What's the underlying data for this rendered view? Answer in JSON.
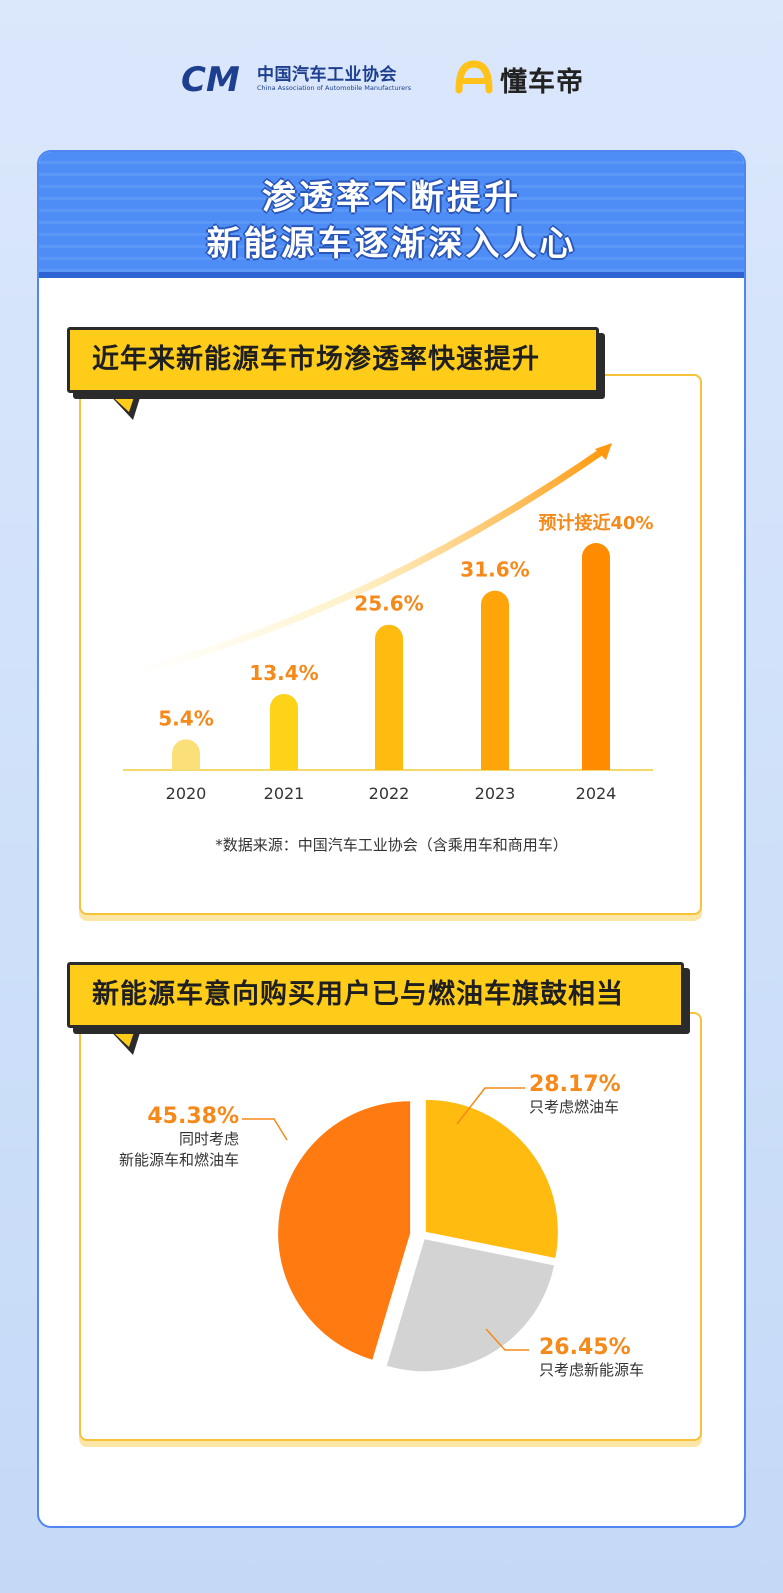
{
  "header": {
    "caam_name_cn": "中国汽车工业协会",
    "caam_name_en": "China Association of Automobile Manufacturers",
    "caam_mark": "CM",
    "dongchedi_name": "懂车帝"
  },
  "card": {
    "title_line1": "渗透率不断提升",
    "title_line2": "新能源车逐渐深入人心"
  },
  "colors": {
    "primary_blue": "#4d8df5",
    "banner_yellow": "#ffcc1a",
    "label_orange": "#f5891a"
  },
  "section1": {
    "banner": "近年来新能源车市场渗透率快速提升",
    "source_note": "*数据来源：中国汽车工业协会（含乘用车和商用车）"
  },
  "section2": {
    "banner": "新能源车意向购买用户已与燃油车旗鼓相当"
  },
  "chart_data": [
    {
      "type": "bar",
      "categories": [
        "2020",
        "2021",
        "2022",
        "2023",
        "2024"
      ],
      "values": [
        5.4,
        13.4,
        25.6,
        31.6,
        40
      ],
      "value_labels": [
        "5.4%",
        "13.4%",
        "25.6%",
        "31.6%",
        "预计接近40%"
      ],
      "colors": [
        "#fbe07a",
        "#ffd21a",
        "#ffbb10",
        "#ffa40a",
        "#ff8c00"
      ],
      "title": "近年来新能源车市场渗透率快速提升",
      "xlabel": "",
      "ylabel": "",
      "ylim": [
        0,
        40
      ],
      "grid": false,
      "trend_arrow": true
    },
    {
      "type": "pie",
      "slices": [
        {
          "value": 28.17,
          "label": "28.17%",
          "desc": [
            "只考虑燃油车"
          ],
          "color": "#ffbb10"
        },
        {
          "value": 26.45,
          "label": "26.45%",
          "desc": [
            "只考虑新能源车"
          ],
          "color": "#d3d3d3"
        },
        {
          "value": 45.38,
          "label": "45.38%",
          "desc": [
            "同时考虑",
            "新能源车和燃油车"
          ],
          "color": "#ff7a10"
        }
      ],
      "title": "新能源车意向购买用户已与燃油车旗鼓相当"
    }
  ]
}
